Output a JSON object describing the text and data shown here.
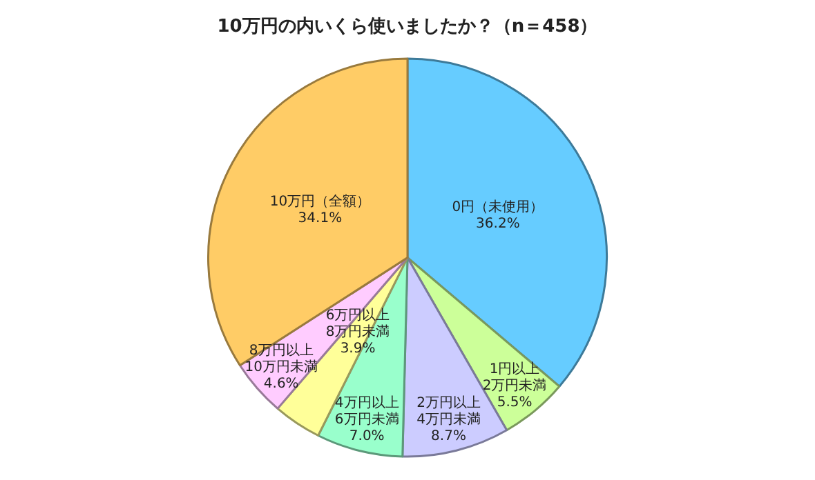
{
  "chart_data": {
    "type": "pie",
    "title": "10万円の内いくら使いましたか？（n＝458）",
    "categories": [
      "0円（未使用）",
      "1円以上\n2万円未満",
      "2万円以上\n4万円未満",
      "4万円以上\n6万円未満",
      "6万円以上\n8万円未満",
      "8万円以上\n10万円未満",
      "10万円（全額）"
    ],
    "values": [
      36.2,
      5.5,
      8.7,
      7.0,
      3.9,
      4.6,
      34.1
    ],
    "value_labels": [
      "36.2%",
      "5.5%",
      "8.7%",
      "7.0%",
      "3.9%",
      "4.6%",
      "34.1%"
    ],
    "colors": [
      "#66ccff",
      "#ccff99",
      "#ccccff",
      "#99ffcc",
      "#ffff99",
      "#ffccff",
      "#ffcc66"
    ],
    "legend": false
  }
}
